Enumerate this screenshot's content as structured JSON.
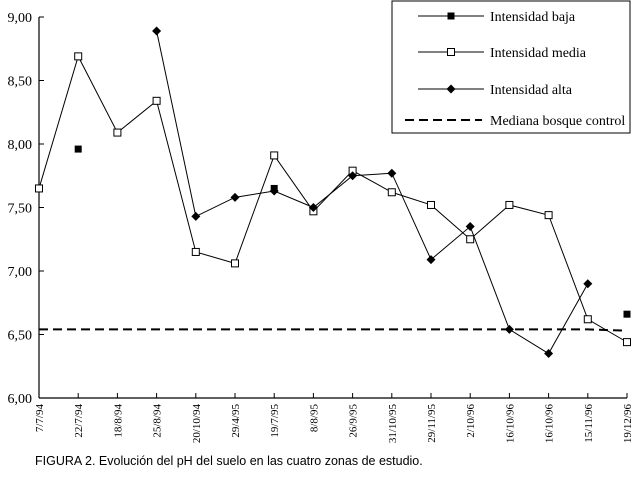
{
  "caption": "FIGURA 2. Evolución del pH del suelo en las cuatro zonas de estudio.",
  "chart_data": {
    "type": "line",
    "title": "",
    "xlabel": "",
    "ylabel": "",
    "ylim": [
      6.0,
      9.0
    ],
    "y_ticks": [
      "6,00",
      "6,50",
      "7,00",
      "7,50",
      "8,00",
      "8,50",
      "9,00"
    ],
    "y_tick_values": [
      6.0,
      6.5,
      7.0,
      7.5,
      8.0,
      8.5,
      9.0
    ],
    "categories": [
      "7/7/94",
      "22/7/94",
      "18/8/94",
      "25/8/94",
      "20/10/94",
      "29/4/95",
      "19/7/95",
      "8/8/95",
      "26/9/95",
      "31/10/95",
      "29/11/95",
      "2/10/96",
      "16/10/96",
      "16/10/96",
      "15/11/96",
      "19/12/96"
    ],
    "legend_position": "top-right",
    "grid": false,
    "series": [
      {
        "name": "Intensidad baja",
        "style": "points",
        "marker": "filled-square",
        "values": [
          null,
          7.96,
          null,
          null,
          null,
          null,
          7.65,
          null,
          null,
          null,
          null,
          null,
          null,
          null,
          null,
          6.66
        ]
      },
      {
        "name": "Intensidad media",
        "style": "line",
        "marker": "open-square",
        "values": [
          7.65,
          8.69,
          8.09,
          8.34,
          7.15,
          7.06,
          7.91,
          7.47,
          7.79,
          7.62,
          7.52,
          7.25,
          7.52,
          7.44,
          6.62,
          6.44
        ]
      },
      {
        "name": "Intensidad alta",
        "style": "line",
        "marker": "filled-diamond",
        "values": [
          null,
          null,
          null,
          8.89,
          7.43,
          7.58,
          7.63,
          7.5,
          7.75,
          7.77,
          7.09,
          7.35,
          6.54,
          6.35,
          6.9,
          null
        ]
      },
      {
        "name": "Mediana bosque control",
        "style": "dashed",
        "marker": "none",
        "values": [
          6.54,
          6.54,
          6.54,
          6.54,
          6.54,
          6.54,
          6.54,
          6.54,
          6.54,
          6.54,
          6.54,
          6.54,
          6.54,
          6.54,
          6.54,
          6.53
        ]
      }
    ]
  }
}
